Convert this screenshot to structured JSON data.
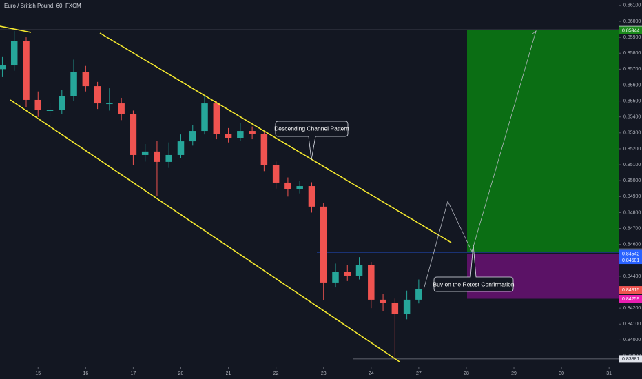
{
  "chart_data": {
    "type": "candlestick",
    "title": "Euro / British Pound, 60, FXCM",
    "x": [
      -0.75,
      -0.5,
      -0.25,
      0,
      0.25,
      0.5,
      0.75,
      1,
      1.25,
      1.5,
      1.75,
      2,
      2.25,
      2.5,
      2.75,
      3,
      3.25,
      3.5,
      3.75,
      4,
      4.25,
      4.5,
      4.75,
      5,
      5.25,
      5.5,
      5.75,
      6,
      6.25,
      6.5,
      6.75,
      7,
      7.25,
      7.5,
      7.75,
      8
    ],
    "open": [
      0.857,
      0.85723,
      0.85875,
      0.85507,
      0.85442,
      0.85442,
      0.85529,
      0.8568,
      0.85593,
      0.85485,
      0.85485,
      0.8542,
      0.85161,
      0.85183,
      0.85118,
      0.85161,
      0.85247,
      0.85312,
      0.85485,
      0.85291,
      0.85269,
      0.85312,
      0.85291,
      0.85096,
      0.84988,
      0.84945,
      0.84966,
      0.84837,
      0.84361,
      0.84426,
      0.84404,
      0.84469,
      0.84253,
      0.84231,
      0.84166,
      0.84253
    ],
    "high": [
      0.8578,
      0.85939,
      0.859,
      0.8556,
      0.8549,
      0.8557,
      0.8576,
      0.8572,
      0.8562,
      0.8558,
      0.8552,
      0.8544,
      0.8523,
      0.8525,
      0.8524,
      0.8529,
      0.8535,
      0.85529,
      0.855,
      0.8533,
      0.8536,
      0.8534,
      0.8531,
      0.8512,
      0.8502,
      0.85,
      0.8499,
      0.8486,
      0.8448,
      0.8447,
      0.8452,
      0.8449,
      0.8429,
      0.8426,
      0.8431,
      0.8438
    ],
    "low": [
      0.8565,
      0.8569,
      0.8546,
      0.854,
      0.854,
      0.8542,
      0.855,
      0.8556,
      0.8545,
      0.8544,
      0.8538,
      0.851,
      0.8512,
      0.84901,
      0.8508,
      0.8514,
      0.8522,
      0.8529,
      0.8526,
      0.8524,
      0.8525,
      0.8526,
      0.8506,
      0.8495,
      0.849,
      0.8492,
      0.848,
      0.8425,
      0.8433,
      0.8437,
      0.8438,
      0.842,
      0.8418,
      0.83881,
      0.8413,
      0.8423
    ],
    "close": [
      0.85723,
      0.85875,
      0.85507,
      0.85442,
      0.85442,
      0.85529,
      0.8568,
      0.85593,
      0.85485,
      0.85485,
      0.8542,
      0.85161,
      0.85183,
      0.85118,
      0.85161,
      0.85247,
      0.85312,
      0.85485,
      0.85291,
      0.85269,
      0.85312,
      0.85291,
      0.85096,
      0.84988,
      0.84945,
      0.84966,
      0.84837,
      0.84361,
      0.84426,
      0.84404,
      0.84469,
      0.84253,
      0.84231,
      0.84166,
      0.84253,
      0.84318
    ],
    "up_color": "#26a69a",
    "down_color": "#ef5350",
    "xlim": [
      -0.8,
      12.2
    ],
    "xticks": [
      {
        "value": 0,
        "label": "15"
      },
      {
        "value": 1,
        "label": "16"
      },
      {
        "value": 2,
        "label": "17"
      },
      {
        "value": 3,
        "label": "20"
      },
      {
        "value": 4,
        "label": "21"
      },
      {
        "value": 5,
        "label": "22"
      },
      {
        "value": 6,
        "label": "23"
      },
      {
        "value": 7,
        "label": "24"
      },
      {
        "value": 8,
        "label": "27"
      },
      {
        "value": 9,
        "label": "28"
      },
      {
        "value": 10,
        "label": "29"
      },
      {
        "value": 11,
        "label": "30"
      },
      {
        "value": 12,
        "label": "31"
      }
    ],
    "ylim": [
      0.83833,
      0.86134
    ],
    "yticks": [
      {
        "value": 0.861,
        "label": "0.86100"
      },
      {
        "value": 0.86,
        "label": "0.86000"
      },
      {
        "value": 0.859,
        "label": "0.85900"
      },
      {
        "value": 0.858,
        "label": "0.85800"
      },
      {
        "value": 0.857,
        "label": "0.85700"
      },
      {
        "value": 0.856,
        "label": "0.85600"
      },
      {
        "value": 0.855,
        "label": "0.85500"
      },
      {
        "value": 0.854,
        "label": "0.85400"
      },
      {
        "value": 0.853,
        "label": "0.85300"
      },
      {
        "value": 0.852,
        "label": "0.85200"
      },
      {
        "value": 0.851,
        "label": "0.85100"
      },
      {
        "value": 0.85,
        "label": "0.85000"
      },
      {
        "value": 0.849,
        "label": "0.84900"
      },
      {
        "value": 0.848,
        "label": "0.84800"
      },
      {
        "value": 0.847,
        "label": "0.84700"
      },
      {
        "value": 0.846,
        "label": "0.84600"
      },
      {
        "value": 0.845,
        "label": "0.84500"
      },
      {
        "value": 0.844,
        "label": "0.84400"
      },
      {
        "value": 0.843,
        "label": "0.84300"
      },
      {
        "value": 0.842,
        "label": "0.84200"
      },
      {
        "value": 0.841,
        "label": "0.84100"
      },
      {
        "value": 0.84,
        "label": "0.84000"
      },
      {
        "value": 0.839,
        "label": "0.83900"
      }
    ],
    "price_levels": [
      0.85947,
      0.85944,
      0.84551,
      0.84542,
      0.84501,
      0.84315,
      0.84259,
      0.83881
    ],
    "price_level_colors": [
      "#e0e3eb",
      "#1b8a1b",
      "#5d606b",
      "#2962ff",
      "#2962ff",
      "#ef5350",
      "#e91eb0",
      "#e0e3eb"
    ],
    "annotations": [
      "Descending Channel Pattern",
      "Buy on the Retest Confirmation"
    ]
  }
}
